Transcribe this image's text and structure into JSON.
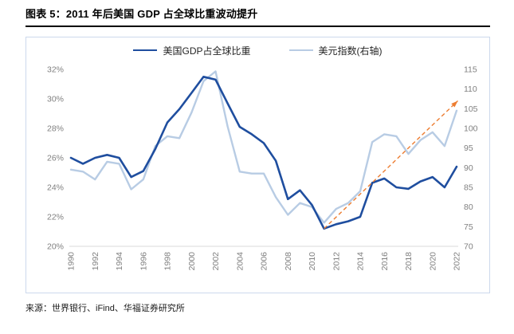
{
  "title": "图表 5：2011 年后美国 GDP 占全球比重波动提升",
  "source": "来源：世界银行、iFind、华福证券研究所",
  "colors": {
    "gdp_line": "#1F4E9F",
    "dollar_index_line": "#B8CCE4",
    "trend_arrow": "#ED7D31",
    "axis_text": "#7F7F7F"
  },
  "chart_data": {
    "type": "line",
    "title": "",
    "xlabel": "",
    "ylabel_left": "美国GDP占全球比重(%)",
    "ylabel_right": "美元指数",
    "grid": false,
    "legend_position": "top",
    "x": [
      1990,
      1991,
      1992,
      1993,
      1994,
      1995,
      1996,
      1997,
      1998,
      1999,
      2000,
      2001,
      2002,
      2003,
      2004,
      2005,
      2006,
      2007,
      2008,
      2009,
      2010,
      2011,
      2012,
      2013,
      2014,
      2015,
      2016,
      2017,
      2018,
      2019,
      2020,
      2021,
      2022
    ],
    "x_ticks": [
      "1990",
      "1992",
      "1994",
      "1996",
      "1998",
      "2000",
      "2002",
      "2004",
      "2006",
      "2008",
      "2010",
      "2012",
      "2014",
      "2016",
      "2018",
      "2020",
      "2022"
    ],
    "series": [
      {
        "name": "美国GDP占全球比重",
        "axis": "left",
        "color": "#1F4E9F",
        "width": 2.6,
        "values": [
          26.0,
          25.6,
          26.0,
          26.2,
          26.0,
          24.7,
          25.1,
          26.6,
          28.4,
          29.3,
          30.4,
          31.5,
          31.3,
          29.7,
          28.1,
          27.6,
          27.0,
          25.8,
          23.2,
          23.8,
          22.8,
          21.2,
          21.5,
          21.7,
          22.0,
          24.3,
          24.6,
          24.0,
          23.9,
          24.4,
          24.7,
          24.0,
          25.4
        ]
      },
      {
        "name": "美元指数(右轴)",
        "axis": "right",
        "color": "#B8CCE4",
        "width": 2.4,
        "values": [
          89.5,
          89.0,
          87.0,
          91.5,
          91.0,
          84.5,
          87.0,
          95.5,
          98.0,
          97.5,
          104.0,
          112.0,
          114.5,
          100.5,
          89.0,
          88.5,
          88.5,
          82.5,
          78.0,
          81.0,
          80.0,
          76.0,
          79.5,
          81.0,
          84.0,
          96.5,
          98.5,
          98.0,
          93.5,
          97.0,
          99.0,
          95.5,
          104.5
        ]
      }
    ],
    "axes": {
      "left": {
        "min": 20,
        "max": 32,
        "step": 2,
        "suffix": "%"
      },
      "right": {
        "min": 70,
        "max": 115,
        "step": 5,
        "suffix": ""
      }
    },
    "annotation": {
      "type": "trend-arrow",
      "style": "dashed",
      "color": "#ED7D31",
      "axis": "right",
      "from": {
        "x": 2011.0,
        "y": 74.5
      },
      "to": {
        "x": 2022.1,
        "y": 107.0
      }
    }
  }
}
